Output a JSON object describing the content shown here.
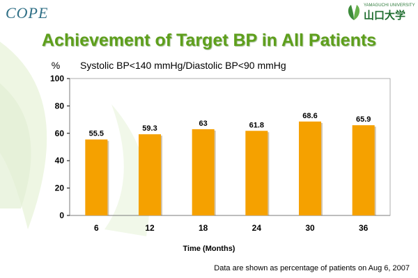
{
  "header": {
    "logo_text": "COPE",
    "university_en": "YAMAGUCHI UNIVERSITY",
    "university_jp": "山口大学"
  },
  "slide": {
    "title": "Achievement of Target BP in All Patients",
    "footnote": "Data are shown as percentage of patients on Aug 6, 2007"
  },
  "colors": {
    "bar": "#f5a100",
    "title": "#5e9f1c"
  },
  "chart_data": {
    "type": "bar",
    "title": "Systolic BP<140 mmHg/Diastolic BP<90 mmHg",
    "ylabel": "%",
    "xlabel": "Time (Months)",
    "categories": [
      "6",
      "12",
      "18",
      "24",
      "30",
      "36"
    ],
    "values": [
      55.5,
      59.3,
      63,
      61.8,
      68.6,
      65.9
    ],
    "value_labels": [
      "55.5",
      "59.3",
      "63",
      "61.8",
      "68.6",
      "65.9"
    ],
    "ylim": [
      0,
      100
    ],
    "yticks": [
      "0",
      "20",
      "40",
      "60",
      "80",
      "100"
    ],
    "grid": false,
    "legend": "none"
  }
}
